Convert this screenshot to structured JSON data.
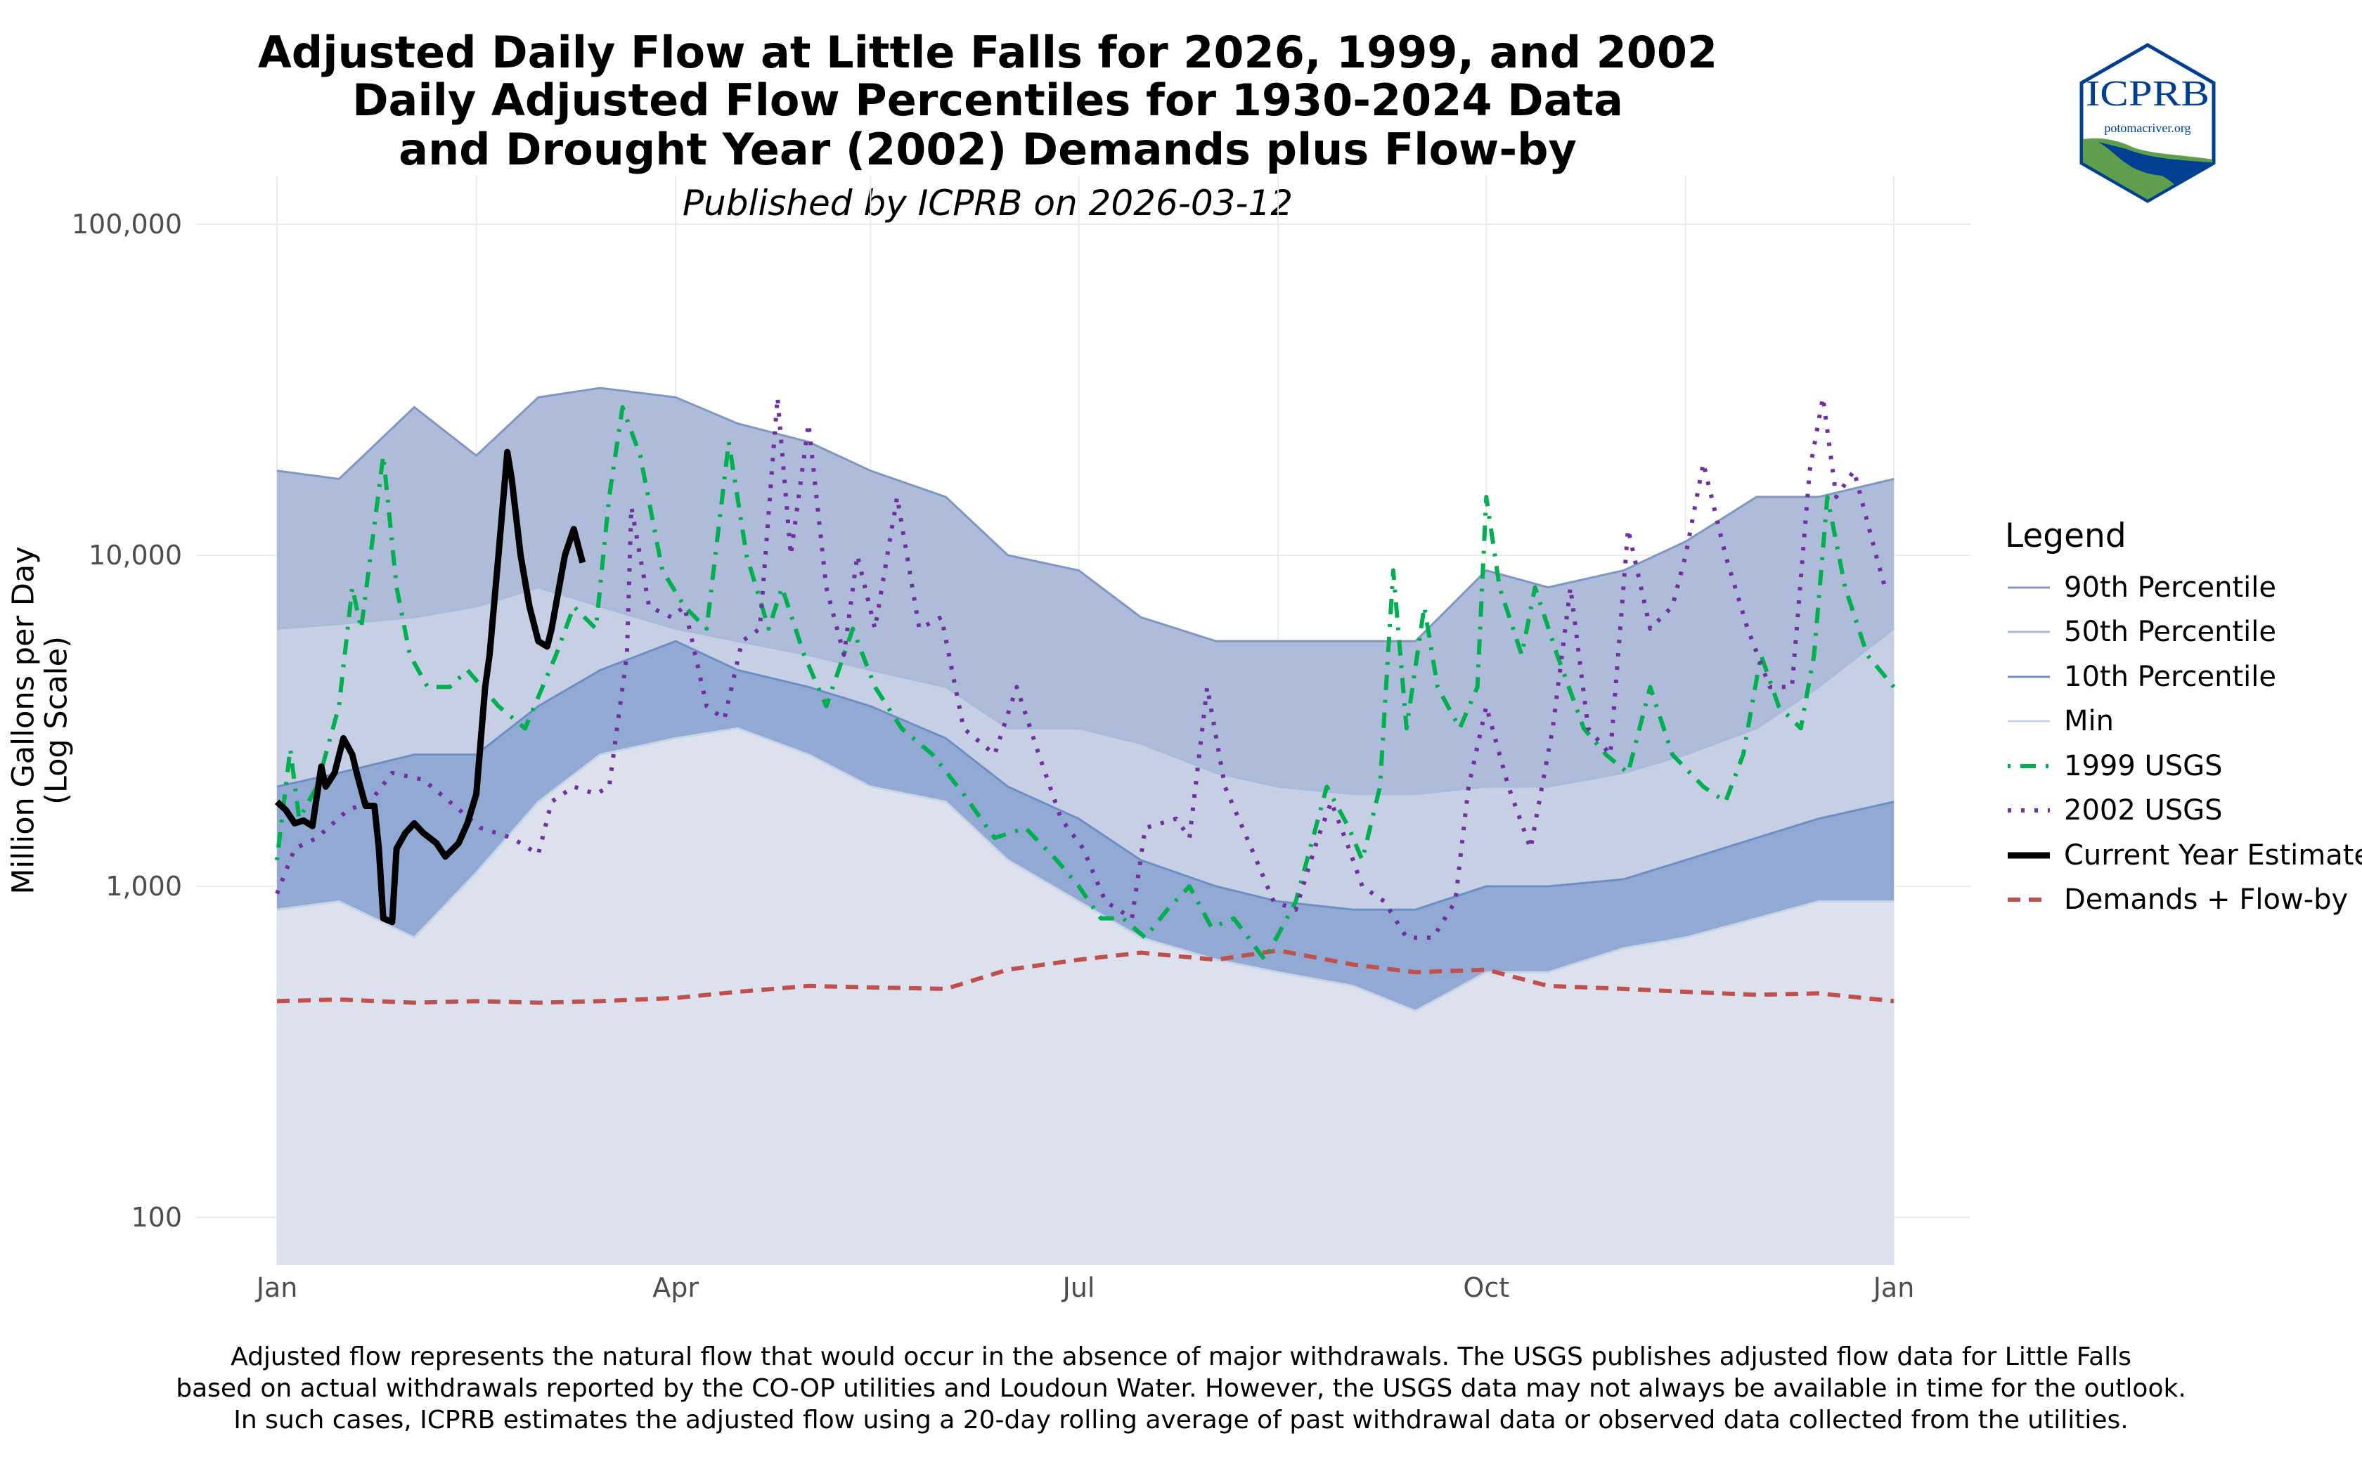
{
  "titles": {
    "line1": "Adjusted Daily Flow at Little Falls for 2026, 1999, and 2002",
    "line2": "Daily Adjusted Flow Percentiles for 1930-2024 Data",
    "line3": "and Drought Year (2002) Demands plus Flow-by",
    "subtitle": "Published by ICPRB on 2026-03-12"
  },
  "logo": {
    "text": "ICPRB",
    "url_text": "potomacriver.org",
    "colors": {
      "blue": "#003f91",
      "green": "#5e9e4c"
    }
  },
  "footer": [
    "Adjusted flow represents the natural flow that would occur in the absence of major withdrawals. The USGS publishes adjusted flow data for Little Falls",
    "based on actual withdrawals reported by the CO-OP utilities and Loudoun Water. However, the USGS data may not always be available in time for the outlook.",
    "In such cases, ICPRB estimates the adjusted flow using a 20-day rolling average of past withdrawal data or observed data collected from the utilities."
  ],
  "chart_data": {
    "type": "area",
    "ylabel": "Million Gallons per Day\n(Log Scale)",
    "yscale": "log",
    "ylim": [
      70,
      150000
    ],
    "yticks": [
      100,
      1000,
      10000,
      100000
    ],
    "ytick_labels": [
      "100",
      "1,000",
      "10,000",
      "100,000"
    ],
    "xticks": [
      "01-01",
      "04-01",
      "07-01",
      "10-01",
      "12-31"
    ],
    "xtick_labels": [
      "Jan",
      "Apr",
      "Jul",
      "Oct",
      "Jan"
    ],
    "grid": true,
    "legend_title": "Legend",
    "legend_position": "right",
    "bands": {
      "dates": [
        "01-01",
        "01-15",
        "02-01",
        "02-15",
        "03-01",
        "03-15",
        "04-01",
        "04-15",
        "05-01",
        "05-15",
        "06-01",
        "06-15",
        "07-01",
        "07-15",
        "08-01",
        "08-15",
        "09-01",
        "09-15",
        "10-01",
        "10-15",
        "11-01",
        "11-15",
        "12-01",
        "12-15",
        "12-31"
      ],
      "p90": [
        18000,
        17000,
        28000,
        20000,
        30000,
        32000,
        30000,
        25000,
        22000,
        18000,
        15000,
        10000,
        9000,
        6500,
        5500,
        5500,
        5500,
        5500,
        9000,
        8000,
        9000,
        11000,
        15000,
        15000,
        17000
      ],
      "p50": [
        6000,
        6200,
        6500,
        7000,
        8000,
        7000,
        6000,
        5500,
        5000,
        4500,
        4000,
        3000,
        3000,
        2700,
        2200,
        2000,
        1900,
        1900,
        2000,
        2000,
        2200,
        2500,
        3000,
        4000,
        6000
      ],
      "p10": [
        2000,
        2200,
        2500,
        2500,
        3500,
        4500,
        5500,
        4500,
        4000,
        3500,
        2800,
        2000,
        1600,
        1200,
        1000,
        900,
        850,
        850,
        1000,
        1000,
        1050,
        1200,
        1400,
        1600,
        1800
      ],
      "min": [
        850,
        900,
        700,
        1100,
        1800,
        2500,
        2800,
        3000,
        2500,
        2000,
        1800,
        1200,
        900,
        700,
        600,
        550,
        500,
        420,
        550,
        550,
        650,
        700,
        800,
        900,
        900
      ]
    },
    "series": [
      {
        "name": "90th Percentile",
        "key": "p90",
        "color": "#7f97c4",
        "fill": "#aebcd9",
        "style": "solid"
      },
      {
        "name": "50th Percentile",
        "key": "p50",
        "color": "#a9bbdb",
        "fill": "#c6cfe4",
        "style": "solid"
      },
      {
        "name": "10th Percentile",
        "key": "p10",
        "color": "#6d8fc6",
        "fill": "#92aad3",
        "style": "solid"
      },
      {
        "name": "Min",
        "key": "min",
        "color": "#c8d3e8",
        "fill": "#dce1ed",
        "style": "solid"
      },
      {
        "name": "1999 USGS",
        "color": "#00b050",
        "style": "dashdot",
        "dates": [
          "01-01",
          "01-04",
          "01-06",
          "01-10",
          "01-15",
          "01-18",
          "01-20",
          "01-25",
          "01-28",
          "01-31",
          "02-04",
          "02-09",
          "02-13",
          "02-20",
          "02-26",
          "03-05",
          "03-09",
          "03-14",
          "03-17",
          "03-20",
          "03-24",
          "03-29",
          "04-03",
          "04-08",
          "04-13",
          "04-17",
          "04-22",
          "04-25",
          "04-30",
          "05-05",
          "05-11",
          "05-16",
          "05-22",
          "05-29",
          "06-05",
          "06-12",
          "06-19",
          "06-26",
          "07-01",
          "07-06",
          "07-11",
          "07-16",
          "07-21",
          "07-26",
          "07-31",
          "08-05",
          "08-12",
          "08-19",
          "08-26",
          "08-31",
          "09-03",
          "09-07",
          "09-10",
          "09-13",
          "09-17",
          "09-20",
          "09-25",
          "09-29",
          "10-01",
          "10-04",
          "10-09",
          "10-12",
          "10-17",
          "10-23",
          "10-28",
          "11-02",
          "11-07",
          "11-12",
          "11-19",
          "11-24",
          "11-28",
          "12-02",
          "12-06",
          "12-11",
          "12-14",
          "12-17",
          "12-21",
          "12-26",
          "12-31"
        ],
        "values": [
          1200,
          2600,
          1600,
          2000,
          3500,
          8000,
          6000,
          20000,
          8000,
          5000,
          4000,
          4000,
          4500,
          3500,
          3000,
          5000,
          7000,
          6000,
          15000,
          28000,
          20000,
          9000,
          7000,
          6000,
          22000,
          10000,
          6000,
          8000,
          5000,
          3500,
          6000,
          4000,
          3000,
          2500,
          1900,
          1400,
          1500,
          1200,
          1000,
          800,
          800,
          700,
          850,
          1000,
          750,
          800,
          600,
          900,
          2000,
          1500,
          1200,
          2000,
          9000,
          3000,
          7000,
          4000,
          3000,
          4000,
          15000,
          8000,
          5000,
          8000,
          5000,
          3000,
          2500,
          2200,
          4000,
          2500,
          2000,
          1800,
          2500,
          5000,
          3500,
          3000,
          5000,
          15000,
          8000,
          5000,
          4000
        ]
      },
      {
        "name": "2002 USGS",
        "color": "#7030a0",
        "style": "dotted",
        "dates": [
          "01-01",
          "01-05",
          "01-10",
          "01-17",
          "01-22",
          "01-27",
          "02-03",
          "02-09",
          "02-16",
          "02-23",
          "03-01",
          "03-04",
          "03-09",
          "03-14",
          "03-17",
          "03-21",
          "03-22",
          "03-26",
          "03-31",
          "04-03",
          "04-08",
          "04-12",
          "04-16",
          "04-20",
          "04-24",
          "04-27",
          "05-01",
          "05-05",
          "05-09",
          "05-12",
          "05-16",
          "05-21",
          "05-26",
          "05-31",
          "06-05",
          "06-12",
          "06-17",
          "06-22",
          "06-27",
          "07-02",
          "07-07",
          "07-13",
          "07-16",
          "07-23",
          "07-26",
          "07-30",
          "08-03",
          "08-09",
          "08-14",
          "08-19",
          "08-24",
          "08-27",
          "08-31",
          "09-03",
          "09-08",
          "09-13",
          "09-19",
          "09-24",
          "09-27",
          "10-01",
          "10-06",
          "10-11",
          "10-16",
          "10-20",
          "10-24",
          "10-29",
          "11-02",
          "11-07",
          "11-12",
          "11-15",
          "11-19",
          "11-24",
          "11-29",
          "12-04",
          "12-09",
          "12-13",
          "12-16",
          "12-19",
          "12-23",
          "12-28",
          "12-30"
        ],
        "values": [
          950,
          1300,
          1400,
          1700,
          1800,
          2200,
          2100,
          1800,
          1500,
          1400,
          1250,
          1800,
          2000,
          1900,
          2000,
          5000,
          14000,
          7000,
          6500,
          7000,
          3500,
          3200,
          5500,
          6000,
          30000,
          10000,
          25000,
          8000,
          5000,
          10000,
          6000,
          15000,
          6000,
          6500,
          3000,
          2500,
          4000,
          2500,
          1600,
          1300,
          900,
          800,
          1500,
          1600,
          1400,
          4000,
          2000,
          1300,
          900,
          850,
          1400,
          1800,
          1300,
          1000,
          900,
          700,
          700,
          900,
          2000,
          3500,
          2000,
          1300,
          3000,
          8000,
          3000,
          2500,
          12000,
          6000,
          7000,
          10000,
          19000,
          10000,
          6000,
          4000,
          4000,
          18000,
          30000,
          15000,
          18000,
          10000,
          8000
        ]
      },
      {
        "name": "Current Year Estimate",
        "color": "#000000",
        "style": "solid-thick",
        "dates": [
          "01-01",
          "01-03",
          "01-05",
          "01-07",
          "01-09",
          "01-11",
          "01-12",
          "01-14",
          "01-16",
          "01-18",
          "01-19",
          "01-21",
          "01-23",
          "01-24",
          "01-25",
          "01-27",
          "01-28",
          "01-30",
          "02-01",
          "02-03",
          "02-06",
          "02-08",
          "02-11",
          "02-13",
          "02-15",
          "02-17",
          "02-18",
          "02-20",
          "02-22",
          "02-23",
          "02-25",
          "02-27",
          "03-01",
          "03-03",
          "03-04",
          "03-07",
          "03-09",
          "03-11"
        ],
        "values": [
          1800,
          1700,
          1550,
          1580,
          1520,
          2300,
          2000,
          2200,
          2800,
          2500,
          2200,
          1750,
          1750,
          1300,
          800,
          780,
          1300,
          1450,
          1550,
          1450,
          1350,
          1230,
          1350,
          1550,
          1900,
          4000,
          5000,
          10000,
          20500,
          17000,
          10000,
          7000,
          5500,
          5300,
          6000,
          10000,
          12000,
          9500
        ]
      },
      {
        "name": "Demands + Flow-by",
        "color": "#c0504d",
        "style": "dashed",
        "dates": [
          "01-01",
          "01-15",
          "02-01",
          "02-15",
          "03-01",
          "03-15",
          "04-01",
          "04-15",
          "05-01",
          "05-15",
          "06-01",
          "06-15",
          "07-01",
          "07-15",
          "08-01",
          "08-15",
          "09-01",
          "09-15",
          "10-01",
          "10-15",
          "11-01",
          "11-15",
          "12-01",
          "12-15",
          "12-31"
        ],
        "values": [
          450,
          455,
          445,
          450,
          445,
          450,
          460,
          480,
          500,
          495,
          490,
          560,
          600,
          630,
          600,
          640,
          580,
          550,
          560,
          500,
          490,
          480,
          470,
          475,
          450
        ]
      }
    ]
  }
}
